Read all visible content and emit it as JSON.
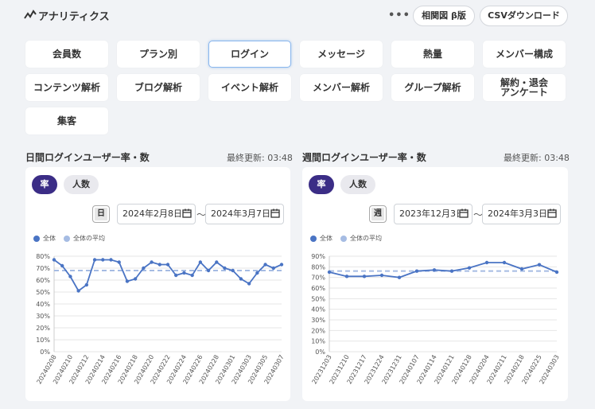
{
  "header": {
    "title": "アナリティクス",
    "more": "•••",
    "buttons": {
      "correlation": "相関図 β版",
      "csv": "CSVダウンロード"
    }
  },
  "categories": [
    [
      "会員数",
      "プラン別",
      "ログイン",
      "メッセージ",
      "熱量",
      "メンバー構成"
    ],
    [
      "コンテンツ解析",
      "ブログ解析",
      "イベント解析",
      "メンバー解析",
      "グループ解析",
      "解約・退会\nアンケート"
    ],
    [
      "集客"
    ]
  ],
  "active_category": "ログイン",
  "daily": {
    "title": "日間ログインユーザー率・数",
    "updated": "最終更新: 03:48",
    "tabs": {
      "rate": "率",
      "count": "人数"
    },
    "unit": "日",
    "date_from": "2024年2月8日",
    "date_to": "2024年3月7日",
    "tilde": "〜"
  },
  "weekly": {
    "title": "週間ログインユーザー率・数",
    "updated": "最終更新: 03:48",
    "tabs": {
      "rate": "率",
      "count": "人数"
    },
    "unit": "週",
    "date_from": "2023年12月3日",
    "date_to": "2024年3月3日",
    "tilde": "〜"
  },
  "colors": {
    "line": "#4a74c4",
    "avg": "#a6bce3",
    "active_pill": "#3b2d86"
  },
  "chart_data": [
    {
      "type": "line",
      "legend": [
        "全体",
        "全体の平均"
      ],
      "ylim": [
        0,
        80
      ],
      "yticks": [
        "0%",
        "10%",
        "20%",
        "30%",
        "40%",
        "50%",
        "60%",
        "70%",
        "80%"
      ],
      "x": [
        "20240208",
        "20240209",
        "20240210",
        "20240211",
        "20240212",
        "20240213",
        "20240214",
        "20240215",
        "20240216",
        "20240217",
        "20240218",
        "20240219",
        "20240220",
        "20240221",
        "20240222",
        "20240223",
        "20240224",
        "20240225",
        "20240226",
        "20240227",
        "20240228",
        "20240229",
        "20240301",
        "20240302",
        "20240303",
        "20240304",
        "20240305",
        "20240306",
        "20240307"
      ],
      "xticks": [
        "20240208",
        "20240210",
        "20240212",
        "20240214",
        "20240216",
        "20240218",
        "20240220",
        "20240222",
        "20240224",
        "20240226",
        "20240228",
        "20240301",
        "20240303",
        "20240305",
        "20240307"
      ],
      "series": [
        {
          "name": "全体",
          "values": [
            77,
            72,
            63,
            51,
            56,
            77,
            77,
            77,
            75,
            59,
            61,
            70,
            75,
            73,
            73,
            64,
            66,
            64,
            75,
            68,
            75,
            70,
            68,
            61,
            57,
            66,
            73,
            70,
            73
          ]
        },
        {
          "name": "全体の平均",
          "values": [
            68,
            68,
            68,
            68,
            68,
            68,
            68,
            68,
            68,
            68,
            68,
            68,
            68,
            68,
            68,
            68,
            68,
            68,
            68,
            68,
            68,
            68,
            68,
            68,
            68,
            68,
            68,
            68,
            68
          ]
        }
      ]
    },
    {
      "type": "line",
      "legend": [
        "全体",
        "全体の平均"
      ],
      "ylim": [
        0,
        90
      ],
      "yticks": [
        "0%",
        "10%",
        "20%",
        "30%",
        "40%",
        "50%",
        "60%",
        "70%",
        "80%",
        "90%"
      ],
      "x": [
        "20231203",
        "20231210",
        "20231217",
        "20231224",
        "20231231",
        "20240107",
        "20240114",
        "20240121",
        "20240128",
        "20240204",
        "20240211",
        "20240218",
        "20240225",
        "20240303"
      ],
      "xticks": [
        "20231203",
        "20231210",
        "20231217",
        "20231224",
        "20231231",
        "20240107",
        "20240114",
        "20240121",
        "20240128",
        "20240204",
        "20240211",
        "20240218",
        "20240225",
        "20240303"
      ],
      "series": [
        {
          "name": "全体",
          "values": [
            75,
            71,
            71,
            72,
            70,
            76,
            77,
            76,
            79,
            84,
            84,
            78,
            82,
            75
          ]
        },
        {
          "name": "全体の平均",
          "values": [
            76,
            76,
            76,
            76,
            76,
            76,
            76,
            76,
            76,
            76,
            76,
            76,
            76,
            76
          ]
        }
      ]
    }
  ]
}
